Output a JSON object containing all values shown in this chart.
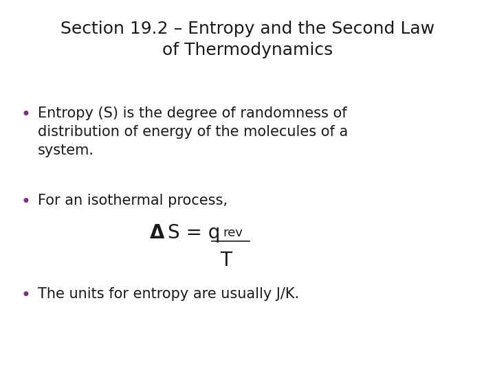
{
  "title_line1": "Section 19.2 – Entropy and the Second Law",
  "title_line2": "of Thermodynamics",
  "title_fontsize": 18,
  "title_color": "#1a1a1a",
  "bullet_color": "#7B2D8B",
  "bullet_fontsize": 15,
  "background_color": "#ffffff",
  "bullet1": "Entropy (S) is the degree of randomness of\ndistribution of energy of the molecules of a\nsystem.",
  "bullet2": "For an isothermal process,",
  "bullet3": "The units for entropy are usually J/K.",
  "text_color": "#1a1a1a",
  "formula_fontsize": 20,
  "formula_sub_fontsize": 13
}
